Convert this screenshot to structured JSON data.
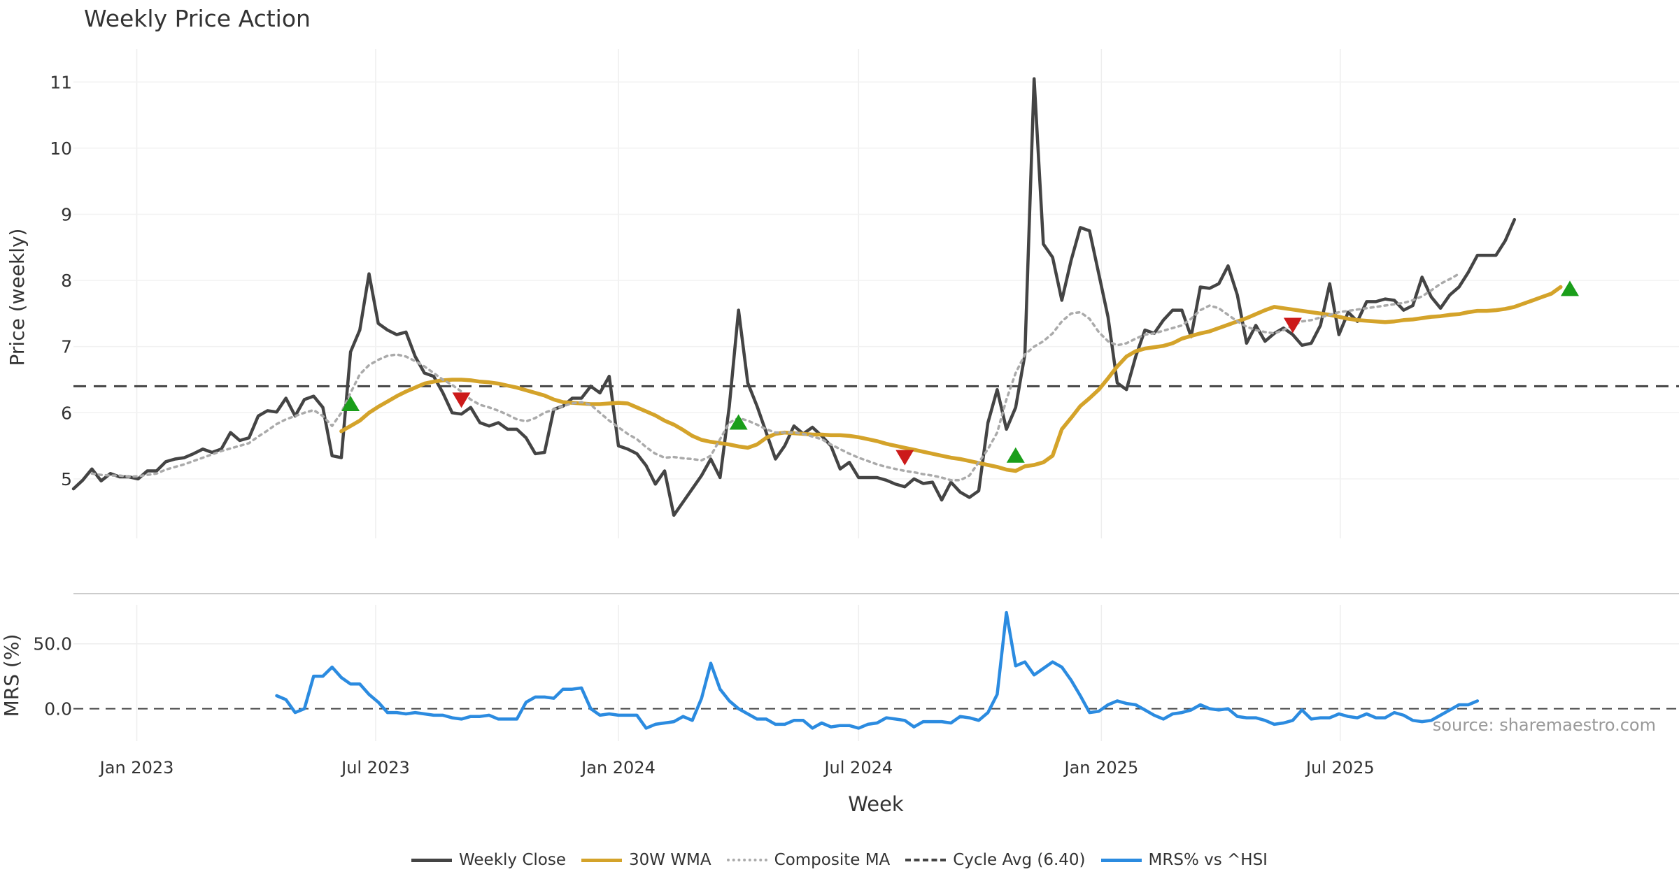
{
  "chart_data": {
    "type": "line",
    "title": "Weekly Price Action",
    "source": "source: sharemaestro.com",
    "xlabel": "Week",
    "x_start": "2022-11-14",
    "x_tick_labels": [
      "Jan 2023",
      "Jul 2023",
      "Jan 2024",
      "Jul 2024",
      "Jan 2025",
      "Jul 2025"
    ],
    "x_tick_dates": [
      "2023-01-01",
      "2023-07-01",
      "2024-01-01",
      "2024-07-01",
      "2025-01-01",
      "2025-07-01"
    ],
    "price_panel": {
      "ylabel": "Price (weekly)",
      "ylim": [
        4.1,
        11.5
      ],
      "yticks": [
        "5",
        "6",
        "7",
        "8",
        "9",
        "10",
        "11"
      ],
      "grid": true
    },
    "mrs_panel": {
      "ylabel": "MRS (%)",
      "ylim": [
        -25,
        80
      ],
      "yticks": [
        "0.0",
        "50.0"
      ],
      "grid": true
    },
    "series": [
      {
        "name": "Weekly Close",
        "color": "#444444",
        "style": "solid",
        "panel": "price",
        "start_index": 0,
        "values": [
          4.85,
          4.98,
          5.15,
          4.97,
          5.08,
          5.03,
          5.03,
          5.0,
          5.12,
          5.12,
          5.26,
          5.3,
          5.32,
          5.38,
          5.45,
          5.4,
          5.45,
          5.7,
          5.58,
          5.62,
          5.95,
          6.03,
          6.01,
          6.22,
          5.95,
          6.2,
          6.25,
          6.08,
          5.35,
          5.32,
          6.92,
          7.25,
          8.1,
          7.35,
          7.25,
          7.18,
          7.22,
          6.85,
          6.6,
          6.55,
          6.3,
          6.0,
          5.98,
          6.08,
          5.85,
          5.8,
          5.85,
          5.75,
          5.75,
          5.62,
          5.38,
          5.4,
          6.05,
          6.1,
          6.22,
          6.22,
          6.4,
          6.3,
          6.55,
          5.5,
          5.45,
          5.38,
          5.2,
          4.92,
          5.12,
          4.45,
          4.65,
          4.85,
          5.05,
          5.3,
          5.02,
          6.1,
          7.55,
          6.45,
          6.1,
          5.7,
          5.3,
          5.5,
          5.8,
          5.68,
          5.78,
          5.65,
          5.5,
          5.15,
          5.25,
          5.02,
          5.02,
          5.02,
          4.98,
          4.92,
          4.88,
          5.0,
          4.93,
          4.95,
          4.68,
          4.95,
          4.8,
          4.72,
          4.82,
          5.85,
          6.35,
          5.75,
          6.08,
          6.88,
          11.05,
          8.55,
          8.35,
          7.7,
          8.3,
          8.8,
          8.75,
          8.1,
          7.45,
          6.45,
          6.35,
          6.85,
          7.25,
          7.2,
          7.4,
          7.55,
          7.55,
          7.15,
          7.9,
          7.88,
          7.95,
          8.22,
          7.78,
          7.05,
          7.32,
          7.08,
          7.2,
          7.28,
          7.18,
          7.02,
          7.05,
          7.32,
          7.95,
          7.18,
          7.52,
          7.38,
          7.68,
          7.68,
          7.72,
          7.7,
          7.55,
          7.62,
          8.05,
          7.75,
          7.58,
          7.78,
          7.9,
          8.12,
          8.38,
          8.38,
          8.38,
          8.6,
          8.92
        ]
      },
      {
        "name": "30W WMA",
        "color": "#D4A32A",
        "style": "solid",
        "panel": "price",
        "start_index": 29,
        "values": [
          5.72,
          5.8,
          5.88,
          6.0,
          6.09,
          6.17,
          6.25,
          6.32,
          6.38,
          6.44,
          6.47,
          6.49,
          6.5,
          6.5,
          6.49,
          6.47,
          6.46,
          6.44,
          6.41,
          6.38,
          6.34,
          6.3,
          6.26,
          6.2,
          6.16,
          6.15,
          6.14,
          6.13,
          6.13,
          6.14,
          6.15,
          6.14,
          6.08,
          6.02,
          5.96,
          5.88,
          5.82,
          5.74,
          5.65,
          5.59,
          5.56,
          5.54,
          5.52,
          5.49,
          5.47,
          5.52,
          5.62,
          5.68,
          5.7,
          5.69,
          5.68,
          5.67,
          5.67,
          5.66,
          5.66,
          5.65,
          5.63,
          5.6,
          5.57,
          5.53,
          5.5,
          5.47,
          5.44,
          5.41,
          5.38,
          5.35,
          5.32,
          5.3,
          5.27,
          5.24,
          5.21,
          5.18,
          5.14,
          5.12,
          5.19,
          5.21,
          5.25,
          5.35,
          5.75,
          5.92,
          6.1,
          6.22,
          6.35,
          6.52,
          6.7,
          6.85,
          6.93,
          6.97,
          6.99,
          7.01,
          7.05,
          7.12,
          7.16,
          7.2,
          7.23,
          7.28,
          7.33,
          7.38,
          7.43,
          7.49,
          7.55,
          7.6,
          7.58,
          7.56,
          7.54,
          7.52,
          7.5,
          7.48,
          7.45,
          7.42,
          7.4,
          7.39,
          7.38,
          7.37,
          7.38,
          7.4,
          7.41,
          7.43,
          7.45,
          7.46,
          7.48,
          7.49,
          7.52,
          7.54,
          7.54,
          7.55,
          7.57,
          7.6,
          7.65,
          7.7,
          7.75,
          7.8,
          7.9
        ]
      },
      {
        "name": "Composite MA",
        "color": "#AAAAAA",
        "style": "dotted",
        "panel": "price",
        "start_index": 2,
        "values": [
          5.08,
          5.06,
          5.05,
          5.05,
          5.03,
          5.04,
          5.06,
          5.08,
          5.14,
          5.18,
          5.22,
          5.27,
          5.32,
          5.37,
          5.42,
          5.46,
          5.5,
          5.54,
          5.64,
          5.73,
          5.83,
          5.9,
          5.95,
          6.0,
          6.04,
          5.95,
          5.8,
          6.0,
          6.3,
          6.58,
          6.72,
          6.8,
          6.86,
          6.88,
          6.85,
          6.78,
          6.7,
          6.6,
          6.5,
          6.42,
          6.32,
          6.2,
          6.12,
          6.08,
          6.03,
          5.97,
          5.9,
          5.87,
          5.92,
          6.0,
          6.05,
          6.1,
          6.14,
          6.16,
          6.12,
          6.0,
          5.88,
          5.78,
          5.68,
          5.6,
          5.48,
          5.38,
          5.32,
          5.33,
          5.31,
          5.3,
          5.28,
          5.35,
          5.6,
          5.85,
          5.92,
          5.88,
          5.82,
          5.75,
          5.7,
          5.7,
          5.7,
          5.68,
          5.64,
          5.6,
          5.52,
          5.45,
          5.38,
          5.32,
          5.27,
          5.22,
          5.18,
          5.15,
          5.12,
          5.1,
          5.07,
          5.05,
          5.02,
          4.98,
          4.98,
          5.05,
          5.25,
          5.45,
          5.7,
          6.2,
          6.6,
          6.88,
          7.0,
          7.08,
          7.2,
          7.38,
          7.5,
          7.52,
          7.42,
          7.22,
          7.08,
          7.02,
          7.05,
          7.12,
          7.18,
          7.2,
          7.24,
          7.28,
          7.32,
          7.42,
          7.55,
          7.62,
          7.58,
          7.48,
          7.38,
          7.3,
          7.25,
          7.22,
          7.2,
          7.25,
          7.32,
          7.38,
          7.4,
          7.44,
          7.48,
          7.52,
          7.54,
          7.56,
          7.58,
          7.6,
          7.62,
          7.64,
          7.66,
          7.7,
          7.76,
          7.85,
          7.95,
          8.02,
          8.1
        ]
      },
      {
        "name": "Cycle Avg (6.40)",
        "color": "#444444",
        "style": "dashed",
        "panel": "price",
        "value": 6.4
      },
      {
        "name": "MRS% vs ^HSI",
        "color": "#2B8BE0",
        "style": "solid",
        "panel": "mrs",
        "start_index": 22,
        "values": [
          10,
          7,
          -3,
          0,
          25,
          25,
          32,
          24,
          19,
          19,
          11,
          5,
          -3,
          -3,
          -4,
          -3,
          -4,
          -5,
          -5,
          -7,
          -8,
          -6,
          -6,
          -5,
          -8,
          -8,
          -8,
          5,
          9,
          9,
          8,
          15,
          15,
          16,
          0,
          -5,
          -4,
          -5,
          -5,
          -5,
          -15,
          -12,
          -11,
          -10,
          -6,
          -9,
          8,
          35,
          15,
          6,
          0,
          -4,
          -8,
          -8,
          -12,
          -12,
          -9,
          -9,
          -15,
          -11,
          -14,
          -13,
          -13,
          -15,
          -12,
          -11,
          -7,
          -8,
          -9,
          -14,
          -10,
          -10,
          -10,
          -11,
          -6,
          -7,
          -9,
          -3,
          11,
          74,
          33,
          36,
          26,
          31,
          36,
          32,
          22,
          10,
          -3,
          -2,
          3,
          6,
          4,
          3,
          -1,
          -5,
          -8,
          -4,
          -3,
          -1,
          3,
          0,
          -1,
          0,
          -6,
          -7,
          -7,
          -9,
          -12,
          -11,
          -9,
          -1,
          -8,
          -7,
          -7,
          -4,
          -6,
          -7,
          -4,
          -7,
          -7,
          -3,
          -5,
          -9,
          -10,
          -9,
          -5,
          -1,
          3,
          3,
          6
        ]
      }
    ],
    "signals": {
      "buy": [
        {
          "index": 30,
          "price": 6.13
        },
        {
          "index": 72,
          "price": 5.85
        },
        {
          "index": 102,
          "price": 5.35
        },
        {
          "index": 162,
          "price": 7.87
        }
      ],
      "sell": [
        {
          "index": 42,
          "price": 6.2
        },
        {
          "index": 90,
          "price": 5.33
        },
        {
          "index": 132,
          "price": 7.33
        }
      ],
      "buy_color": "#1A9E1A",
      "sell_color": "#CC1A1A"
    },
    "legend_position": "bottom-center"
  }
}
